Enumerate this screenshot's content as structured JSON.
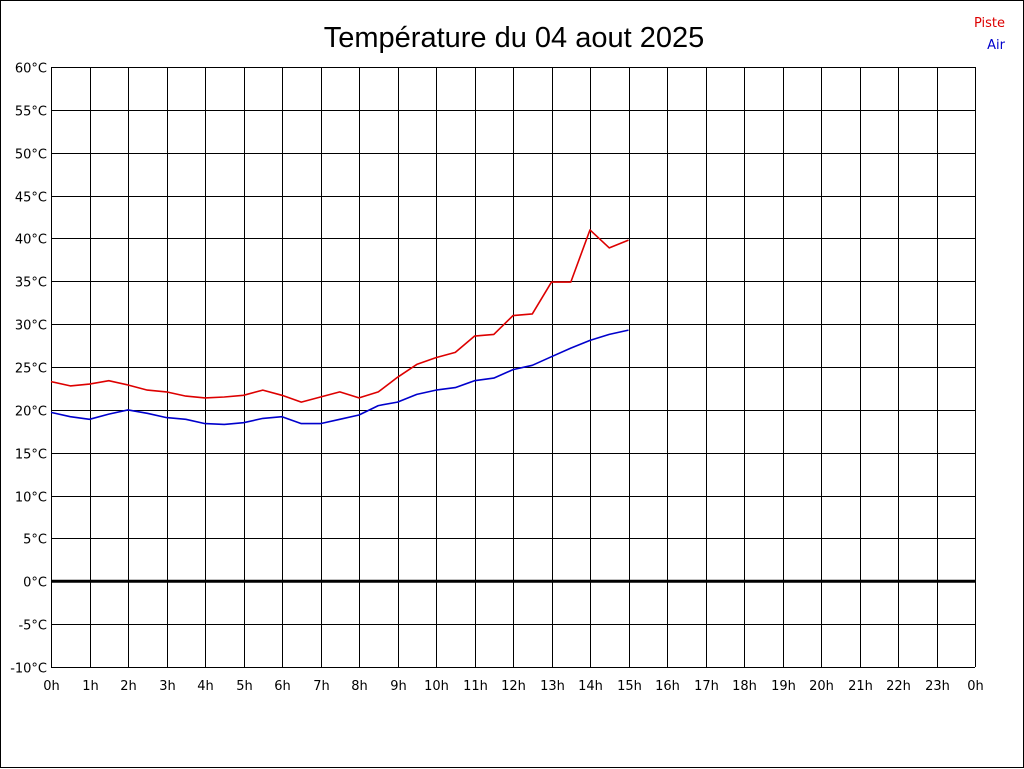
{
  "chart_data": {
    "type": "line",
    "title": "Température du 04 aout 2025",
    "xlabel": "",
    "ylabel": "",
    "x_ticks": [
      "0h",
      "1h",
      "2h",
      "3h",
      "4h",
      "5h",
      "6h",
      "7h",
      "8h",
      "9h",
      "10h",
      "11h",
      "12h",
      "13h",
      "14h",
      "15h",
      "16h",
      "17h",
      "18h",
      "19h",
      "20h",
      "21h",
      "22h",
      "23h",
      "0h"
    ],
    "y_ticks": [
      "60°C",
      "55°C",
      "50°C",
      "45°C",
      "40°C",
      "35°C",
      "30°C",
      "25°C",
      "20°C",
      "15°C",
      "10°C",
      "5°C",
      "0°C",
      "-5°C",
      "-10°C"
    ],
    "xlim": [
      0,
      24
    ],
    "ylim": [
      -10,
      60
    ],
    "grid": true,
    "zero_line": true,
    "legend_position": "top-right",
    "x": [
      0,
      0.5,
      1,
      1.5,
      2,
      2.5,
      3,
      3.5,
      4,
      4.5,
      5,
      5.5,
      6,
      6.5,
      7,
      7.5,
      8,
      8.5,
      9,
      9.5,
      10,
      10.5,
      11,
      11.5,
      12,
      12.5,
      13,
      13.5,
      14,
      14.5,
      15
    ],
    "series": [
      {
        "name": "Piste",
        "color": "#dd0000",
        "values": [
          23.3,
          22.8,
          23.0,
          23.4,
          22.9,
          22.3,
          22.1,
          21.6,
          21.4,
          21.5,
          21.7,
          22.3,
          21.7,
          20.9,
          21.5,
          22.1,
          21.4,
          22.1,
          23.8,
          25.3,
          26.1,
          26.7,
          28.6,
          28.8,
          31.0,
          31.2,
          34.9,
          34.9,
          41.0,
          38.9,
          39.8
        ]
      },
      {
        "name": "Air",
        "color": "#0000cc",
        "values": [
          19.7,
          19.2,
          18.9,
          19.5,
          20.0,
          19.6,
          19.1,
          18.9,
          18.4,
          18.3,
          18.5,
          19.0,
          19.2,
          18.4,
          18.4,
          18.9,
          19.4,
          20.5,
          20.9,
          21.8,
          22.3,
          22.6,
          23.4,
          23.7,
          24.7,
          25.2,
          26.2,
          27.2,
          28.1,
          28.8,
          29.3
        ]
      }
    ]
  }
}
